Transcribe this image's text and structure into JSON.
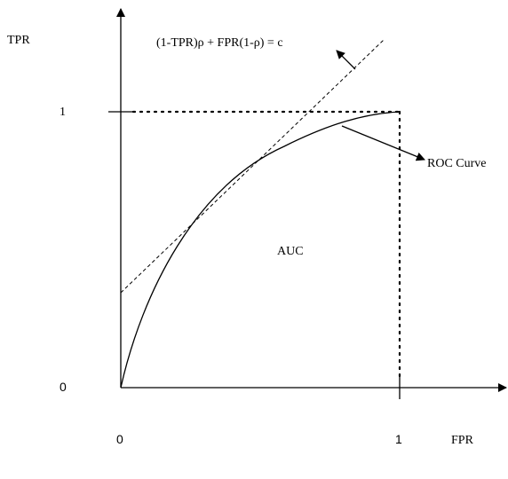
{
  "axes": {
    "y_label": "TPR",
    "x_label": "FPR",
    "y_tick_one": "1",
    "y_tick_zero": "0",
    "x_tick_zero": "0",
    "x_tick_one": "1"
  },
  "annotations": {
    "iso_line_equation": "(1-TPR)ρ + FPR(1-ρ) = c",
    "curve_label": "ROC Curve",
    "area_label": "AUC"
  }
}
